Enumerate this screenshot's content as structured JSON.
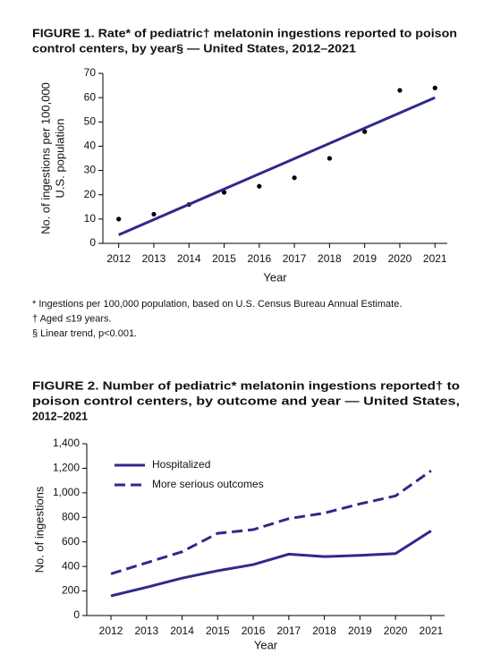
{
  "chart_data": [
    {
      "type": "scatter",
      "title": [
        "FIGURE 1. Rate* of pediatric† melatonin ingestions reported to poison",
        "control centers, by year§ — United States, 2012–2021"
      ],
      "x": [
        2012,
        2013,
        2014,
        2015,
        2016,
        2017,
        2018,
        2019,
        2020,
        2021
      ],
      "values": [
        10,
        12,
        16,
        21,
        23.5,
        27,
        35,
        46,
        63,
        64
      ],
      "color": "#000000",
      "trend": {
        "x": [
          2012,
          2021
        ],
        "values": [
          3.5,
          60
        ],
        "color": "#2e2a8c"
      },
      "xlim": [
        2011.55,
        2021.35
      ],
      "xticks": [
        2012,
        2013,
        2014,
        2015,
        2016,
        2017,
        2018,
        2019,
        2020,
        2021
      ],
      "ylim": [
        0,
        70
      ],
      "yticks": [
        0,
        10,
        20,
        30,
        40,
        50,
        60,
        70
      ],
      "xlabel": "Year",
      "ylabel": [
        "No. of ingestions per 100,000",
        "U.S. population"
      ],
      "footnotes": [
        "* Ingestions per 100,000 population, based on U.S. Census Bureau Annual Estimate.",
        "† Aged ≤19 years.",
        "§ Linear trend, p<0.001."
      ]
    },
    {
      "type": "line",
      "title": [
        "FIGURE 2. Number of pediatric* melatonin ingestions reported† to",
        "poison control centers, by outcome and year — United States,",
        "2012–2021"
      ],
      "x": [
        2012,
        2013,
        2014,
        2015,
        2016,
        2017,
        2018,
        2019,
        2020,
        2021
      ],
      "series": [
        {
          "name": "Hospitalized",
          "color": "#2e2a8c",
          "dashed": false,
          "values": [
            160,
            230,
            305,
            365,
            415,
            500,
            480,
            490,
            505,
            690
          ]
        },
        {
          "name": "More serious outcomes",
          "color": "#2e2a8c",
          "dashed": true,
          "values": [
            340,
            430,
            520,
            670,
            700,
            790,
            835,
            910,
            975,
            1180
          ]
        }
      ],
      "xlim": [
        2011.32,
        2021.38
      ],
      "xticks": [
        2012,
        2013,
        2014,
        2015,
        2016,
        2017,
        2018,
        2019,
        2020,
        2021
      ],
      "ylim": [
        0,
        1400
      ],
      "yticks": [
        0,
        200,
        400,
        600,
        800,
        {
          "value": 1000,
          "label": "1,000"
        },
        {
          "value": 1200,
          "label": "1,200"
        },
        {
          "value": 1400,
          "label": "1,400"
        }
      ],
      "xlabel": "Year",
      "ylabel": [
        "No. of ingestions"
      ]
    }
  ]
}
